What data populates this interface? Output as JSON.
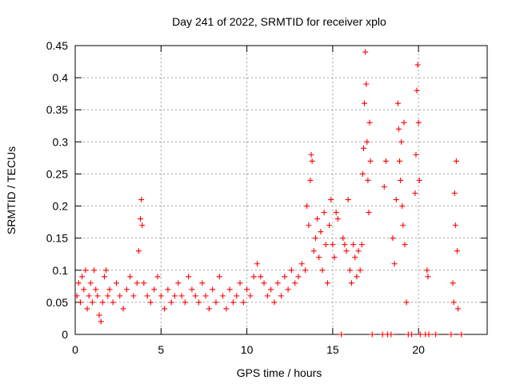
{
  "chart_data": {
    "type": "scatter",
    "title": "Day 241 of 2022, SRMTID for receiver xplo",
    "xlabel": "GPS time / hours",
    "ylabel": "SRMTID / TECUs",
    "xlim": [
      0,
      24
    ],
    "ylim": [
      0,
      0.45
    ],
    "x_ticks": [
      0,
      5,
      10,
      15,
      20
    ],
    "x_tick_labels": [
      "0",
      "5",
      "10",
      "15",
      "20"
    ],
    "y_ticks": [
      0,
      0.05,
      0.1,
      0.15,
      0.2,
      0.25,
      0.3,
      0.35,
      0.4,
      0.45
    ],
    "y_tick_labels": [
      "0",
      "0.05",
      "0.1",
      "0.15",
      "0.2",
      "0.25",
      "0.3",
      "0.35",
      "0.4",
      "0.45"
    ],
    "grid": true,
    "marker": "+",
    "color": "#ff0000",
    "series": [
      {
        "name": "SRMTID",
        "points": [
          [
            0.1,
            0.06
          ],
          [
            0.2,
            0.08
          ],
          [
            0.3,
            0.05
          ],
          [
            0.4,
            0.09
          ],
          [
            0.5,
            0.07
          ],
          [
            0.6,
            0.1
          ],
          [
            0.7,
            0.04
          ],
          [
            0.8,
            0.06
          ],
          [
            0.9,
            0.08
          ],
          [
            1.0,
            0.05
          ],
          [
            1.1,
            0.1
          ],
          [
            1.2,
            0.07
          ],
          [
            1.3,
            0.06
          ],
          [
            1.4,
            0.03
          ],
          [
            1.5,
            0.02
          ],
          [
            1.6,
            0.05
          ],
          [
            1.7,
            0.09
          ],
          [
            1.8,
            0.1
          ],
          [
            1.9,
            0.06
          ],
          [
            2.0,
            0.07
          ],
          [
            2.2,
            0.05
          ],
          [
            2.4,
            0.08
          ],
          [
            2.6,
            0.06
          ],
          [
            2.8,
            0.04
          ],
          [
            3.0,
            0.07
          ],
          [
            3.2,
            0.09
          ],
          [
            3.4,
            0.06
          ],
          [
            3.6,
            0.08
          ],
          [
            3.7,
            0.13
          ],
          [
            3.8,
            0.18
          ],
          [
            3.85,
            0.21
          ],
          [
            3.9,
            0.17
          ],
          [
            4.0,
            0.08
          ],
          [
            4.2,
            0.06
          ],
          [
            4.4,
            0.05
          ],
          [
            4.6,
            0.07
          ],
          [
            4.8,
            0.09
          ],
          [
            5.0,
            0.06
          ],
          [
            5.2,
            0.04
          ],
          [
            5.4,
            0.07
          ],
          [
            5.6,
            0.05
          ],
          [
            5.8,
            0.06
          ],
          [
            6.0,
            0.08
          ],
          [
            6.2,
            0.06
          ],
          [
            6.4,
            0.05
          ],
          [
            6.6,
            0.09
          ],
          [
            6.8,
            0.07
          ],
          [
            7.0,
            0.06
          ],
          [
            7.2,
            0.05
          ],
          [
            7.4,
            0.08
          ],
          [
            7.6,
            0.06
          ],
          [
            7.8,
            0.04
          ],
          [
            8.0,
            0.07
          ],
          [
            8.2,
            0.05
          ],
          [
            8.4,
            0.09
          ],
          [
            8.6,
            0.06
          ],
          [
            8.8,
            0.04
          ],
          [
            9.0,
            0.07
          ],
          [
            9.2,
            0.05
          ],
          [
            9.4,
            0.06
          ],
          [
            9.6,
            0.08
          ],
          [
            9.8,
            0.05
          ],
          [
            10.0,
            0.07
          ],
          [
            10.2,
            0.06
          ],
          [
            10.4,
            0.09
          ],
          [
            10.6,
            0.11
          ],
          [
            10.8,
            0.09
          ],
          [
            11.0,
            0.08
          ],
          [
            11.2,
            0.06
          ],
          [
            11.4,
            0.07
          ],
          [
            11.6,
            0.05
          ],
          [
            11.8,
            0.08
          ],
          [
            12.0,
            0.06
          ],
          [
            12.2,
            0.09
          ],
          [
            12.4,
            0.07
          ],
          [
            12.6,
            0.1
          ],
          [
            12.8,
            0.08
          ],
          [
            13.0,
            0.09
          ],
          [
            13.2,
            0.11
          ],
          [
            13.4,
            0.1
          ],
          [
            13.5,
            0.2
          ],
          [
            13.6,
            0.17
          ],
          [
            13.7,
            0.24
          ],
          [
            13.75,
            0.28
          ],
          [
            13.8,
            0.27
          ],
          [
            13.9,
            0.13
          ],
          [
            14.0,
            0.15
          ],
          [
            14.1,
            0.18
          ],
          [
            14.2,
            0.12
          ],
          [
            14.3,
            0.16
          ],
          [
            14.4,
            0.1
          ],
          [
            14.5,
            0.19
          ],
          [
            14.6,
            0.14
          ],
          [
            14.7,
            0.08
          ],
          [
            14.8,
            0.17
          ],
          [
            14.9,
            0.21
          ],
          [
            15.0,
            0.14
          ],
          [
            15.1,
            0.12
          ],
          [
            15.2,
            0.19
          ],
          [
            15.3,
            0.18
          ],
          [
            15.5,
            0.0
          ],
          [
            15.6,
            0.15
          ],
          [
            15.7,
            0.14
          ],
          [
            15.8,
            0.13
          ],
          [
            15.9,
            0.21
          ],
          [
            16.0,
            0.1
          ],
          [
            16.1,
            0.08
          ],
          [
            16.2,
            0.14
          ],
          [
            16.3,
            0.12
          ],
          [
            16.4,
            0.09
          ],
          [
            16.5,
            0.13
          ],
          [
            16.6,
            0.1
          ],
          [
            16.7,
            0.14
          ],
          [
            16.75,
            0.25
          ],
          [
            16.8,
            0.29
          ],
          [
            16.85,
            0.36
          ],
          [
            16.9,
            0.44
          ],
          [
            16.95,
            0.39
          ],
          [
            17.0,
            0.3
          ],
          [
            17.05,
            0.24
          ],
          [
            17.1,
            0.19
          ],
          [
            17.15,
            0.33
          ],
          [
            17.2,
            0.27
          ],
          [
            17.3,
            0.0
          ],
          [
            17.9,
            0.0
          ],
          [
            18.0,
            0.23
          ],
          [
            18.1,
            0.27
          ],
          [
            18.2,
            0.0
          ],
          [
            18.4,
            0.0
          ],
          [
            18.5,
            0.15
          ],
          [
            18.6,
            0.11
          ],
          [
            18.7,
            0.21
          ],
          [
            18.8,
            0.36
          ],
          [
            18.85,
            0.32
          ],
          [
            18.9,
            0.27
          ],
          [
            18.95,
            0.24
          ],
          [
            19.0,
            0.3
          ],
          [
            19.05,
            0.2
          ],
          [
            19.1,
            0.17
          ],
          [
            19.15,
            0.33
          ],
          [
            19.2,
            0.14
          ],
          [
            19.3,
            0.05
          ],
          [
            19.4,
            0.0
          ],
          [
            19.6,
            0.0
          ],
          [
            19.8,
            0.22
          ],
          [
            19.85,
            0.28
          ],
          [
            19.9,
            0.38
          ],
          [
            19.95,
            0.42
          ],
          [
            20.0,
            0.33
          ],
          [
            20.05,
            0.24
          ],
          [
            20.1,
            0.0
          ],
          [
            20.4,
            0.0
          ],
          [
            20.5,
            0.1
          ],
          [
            20.55,
            0.09
          ],
          [
            20.6,
            0.0
          ],
          [
            21.0,
            0.0
          ],
          [
            21.9,
            0.0
          ],
          [
            22.0,
            0.08
          ],
          [
            22.05,
            0.05
          ],
          [
            22.1,
            0.22
          ],
          [
            22.15,
            0.17
          ],
          [
            22.2,
            0.27
          ],
          [
            22.25,
            0.13
          ],
          [
            22.3,
            0.04
          ],
          [
            22.5,
            0.0
          ]
        ]
      }
    ]
  }
}
